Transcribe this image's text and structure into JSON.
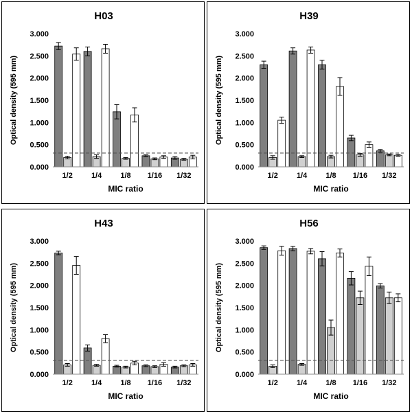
{
  "colors": {
    "series_dark": "#7f7f7f",
    "series_light": "#d0d0d0",
    "series_white": "#ffffff",
    "bar_stroke": "#000000",
    "threshold_line": "#555555"
  },
  "chart_data": [
    {
      "type": "bar",
      "title": "H03",
      "xlabel": "MIC ratio",
      "ylabel": "Optical density (595 mm)",
      "categories": [
        "1/2",
        "1/4",
        "1/8",
        "1/16",
        "1/32"
      ],
      "ylim": [
        0,
        3.0
      ],
      "yticks": [
        "0.000",
        "0.500",
        "1.000",
        "1.500",
        "2.000",
        "2.500",
        "3.000"
      ],
      "threshold": 0.31,
      "grid": false,
      "legend": "none",
      "series": [
        {
          "values": [
            2.72,
            2.6,
            1.24,
            0.25,
            0.2
          ],
          "errors": [
            0.08,
            0.1,
            0.16,
            0.02,
            0.03
          ]
        },
        {
          "values": [
            0.21,
            0.23,
            0.19,
            0.18,
            0.17
          ],
          "errors": [
            0.03,
            0.04,
            0.02,
            0.02,
            0.02
          ]
        },
        {
          "values": [
            2.54,
            2.66,
            1.17,
            0.22,
            0.22
          ],
          "errors": [
            0.14,
            0.1,
            0.16,
            0.03,
            0.04
          ]
        }
      ]
    },
    {
      "type": "bar",
      "title": "H39",
      "xlabel": "MIC ratio",
      "ylabel": "Optical density (595 mm)",
      "categories": [
        "1/2",
        "1/4",
        "1/8",
        "1/16",
        "1/32"
      ],
      "ylim": [
        0,
        3.0
      ],
      "yticks": [
        "0.000",
        "0.500",
        "1.000",
        "1.500",
        "2.000",
        "2.500",
        "3.000"
      ],
      "threshold": 0.31,
      "grid": false,
      "legend": "none",
      "series": [
        {
          "values": [
            2.3,
            2.61,
            2.3,
            0.65,
            0.36
          ],
          "errors": [
            0.08,
            0.07,
            0.1,
            0.06,
            0.03
          ]
        },
        {
          "values": [
            0.21,
            0.23,
            0.23,
            0.27,
            0.27
          ],
          "errors": [
            0.04,
            0.02,
            0.03,
            0.03,
            0.02
          ]
        },
        {
          "values": [
            1.05,
            2.63,
            1.81,
            0.5,
            0.26
          ],
          "errors": [
            0.07,
            0.07,
            0.2,
            0.06,
            0.02
          ]
        }
      ]
    },
    {
      "type": "bar",
      "title": "H43",
      "xlabel": "MIC ratio",
      "ylabel": "Optical density (595 mm)",
      "categories": [
        "1/2",
        "1/4",
        "1/8",
        "1/16",
        "1/32"
      ],
      "ylim": [
        0,
        3.0
      ],
      "yticks": [
        "0.000",
        "0.500",
        "1.000",
        "1.500",
        "2.000",
        "2.500",
        "3.000"
      ],
      "threshold": 0.31,
      "grid": false,
      "legend": "none",
      "series": [
        {
          "values": [
            2.73,
            0.59,
            0.18,
            0.19,
            0.16
          ],
          "errors": [
            0.04,
            0.07,
            0.02,
            0.02,
            0.02
          ]
        },
        {
          "values": [
            0.21,
            0.2,
            0.16,
            0.17,
            0.19
          ],
          "errors": [
            0.03,
            0.02,
            0.02,
            0.02,
            0.02
          ]
        },
        {
          "values": [
            2.45,
            0.8,
            0.25,
            0.22,
            0.21
          ],
          "errors": [
            0.2,
            0.09,
            0.04,
            0.04,
            0.03
          ]
        }
      ]
    },
    {
      "type": "bar",
      "title": "H56",
      "xlabel": "MIC ratio",
      "ylabel": "Optical density (595 mm)",
      "categories": [
        "1/2",
        "1/4",
        "1/8",
        "1/16",
        "1/32"
      ],
      "ylim": [
        0,
        3.0
      ],
      "yticks": [
        "0.000",
        "0.500",
        "1.000",
        "1.500",
        "2.000",
        "2.500",
        "3.000"
      ],
      "threshold": 0.31,
      "grid": false,
      "legend": "none",
      "series": [
        {
          "values": [
            2.85,
            2.83,
            2.6,
            2.16,
            1.99
          ],
          "errors": [
            0.04,
            0.05,
            0.16,
            0.15,
            0.05
          ]
        },
        {
          "values": [
            0.18,
            0.22,
            1.05,
            1.72,
            1.72
          ],
          "errors": [
            0.03,
            0.02,
            0.17,
            0.15,
            0.13
          ]
        },
        {
          "values": [
            2.78,
            2.77,
            2.73,
            2.43,
            1.72
          ],
          "errors": [
            0.1,
            0.06,
            0.09,
            0.21,
            0.09
          ]
        }
      ]
    }
  ]
}
